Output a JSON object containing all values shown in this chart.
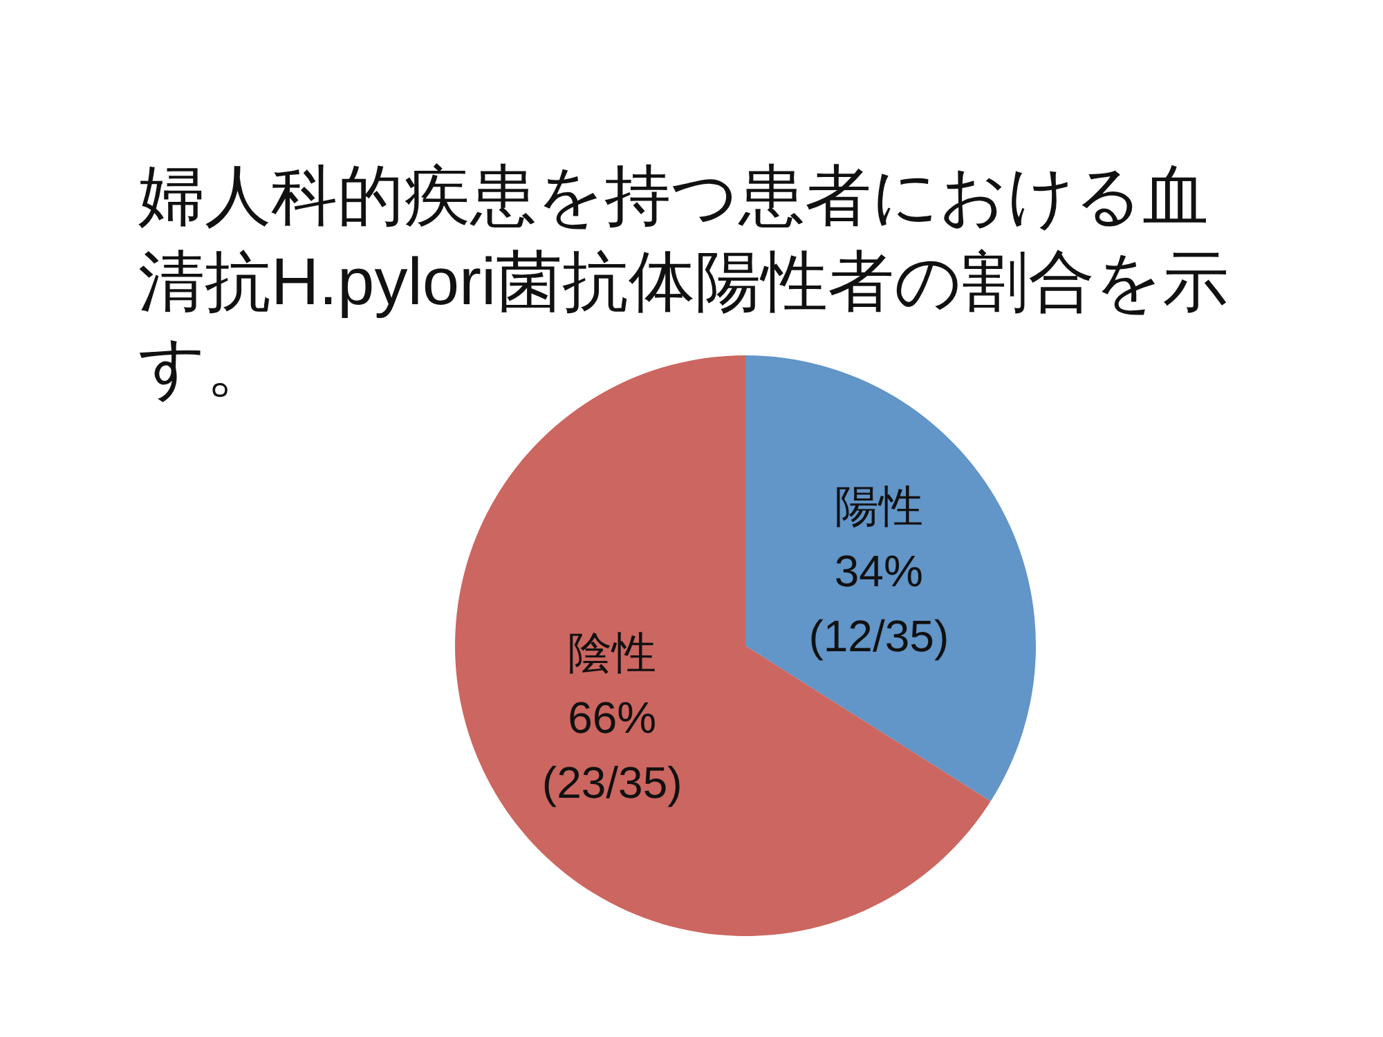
{
  "chart_data": {
    "type": "pie",
    "title": "婦人科的疾患を持つ患者における血清抗H.pylori菌抗体陽性者の割合を示す。",
    "categories": [
      "陽性",
      "陰性"
    ],
    "values": [
      34,
      66
    ],
    "colors": [
      "#6295c8",
      "#cc6660"
    ],
    "value_labels": [
      "34%\n(12/35)",
      "66%\n(23/35)"
    ]
  }
}
